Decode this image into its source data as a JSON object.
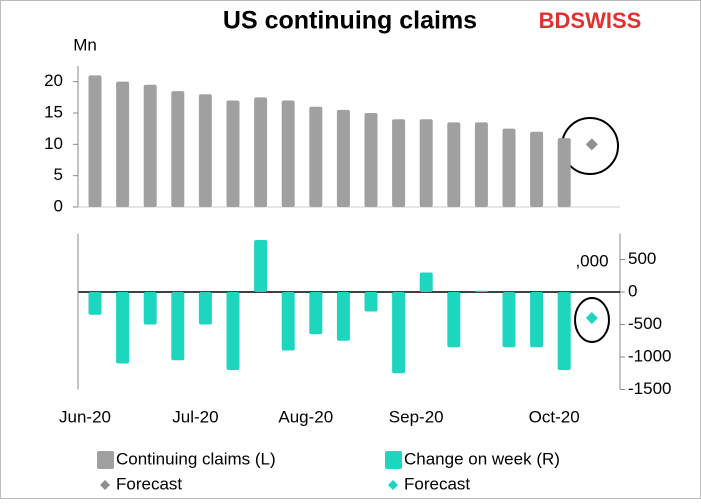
{
  "chart_data": {
    "type": "bar",
    "title": "US continuing claims",
    "logo": "BDSWISS",
    "ylabel": "Mn",
    "y2label": ",000",
    "categories": [
      "Jun-20",
      null,
      null,
      null,
      "Jul-20",
      null,
      null,
      null,
      "Aug-20",
      null,
      null,
      null,
      "Sep-20",
      null,
      null,
      null,
      null,
      "Oct-20",
      null
    ],
    "ylim": [
      0,
      22.5
    ],
    "yticks": [
      0,
      5,
      10,
      15,
      20
    ],
    "y2lim": [
      -1500,
      900
    ],
    "y2ticks": [
      -1500,
      -1000,
      -500,
      0,
      500
    ],
    "series": [
      {
        "name": "Continuing claims (L)",
        "color": "#a0a0a0",
        "kind": "bar",
        "values": [
          21,
          20,
          19.5,
          18.5,
          18,
          17,
          17.5,
          17,
          16,
          15.5,
          15,
          14,
          14,
          13.5,
          13.5,
          12.5,
          12,
          11,
          null
        ]
      },
      {
        "name": "Forecast",
        "color": "#8f8f8f",
        "kind": "point",
        "values": [
          null,
          null,
          null,
          null,
          null,
          null,
          null,
          null,
          null,
          null,
          null,
          null,
          null,
          null,
          null,
          null,
          null,
          null,
          10
        ]
      },
      {
        "name": "Change on week (R)",
        "color": "#1dd6be",
        "kind": "bar",
        "axis": "y2",
        "values": [
          -350,
          -1100,
          -500,
          -1050,
          -500,
          -1200,
          800,
          -900,
          -650,
          -750,
          -300,
          -1250,
          300,
          -850,
          20,
          -850,
          -850,
          -1200,
          null
        ]
      },
      {
        "name": "Forecast",
        "color": "#1dd6be",
        "kind": "point",
        "axis": "y2",
        "values": [
          null,
          null,
          null,
          null,
          null,
          null,
          null,
          null,
          null,
          null,
          null,
          null,
          null,
          null,
          null,
          null,
          null,
          null,
          -400
        ]
      }
    ]
  }
}
